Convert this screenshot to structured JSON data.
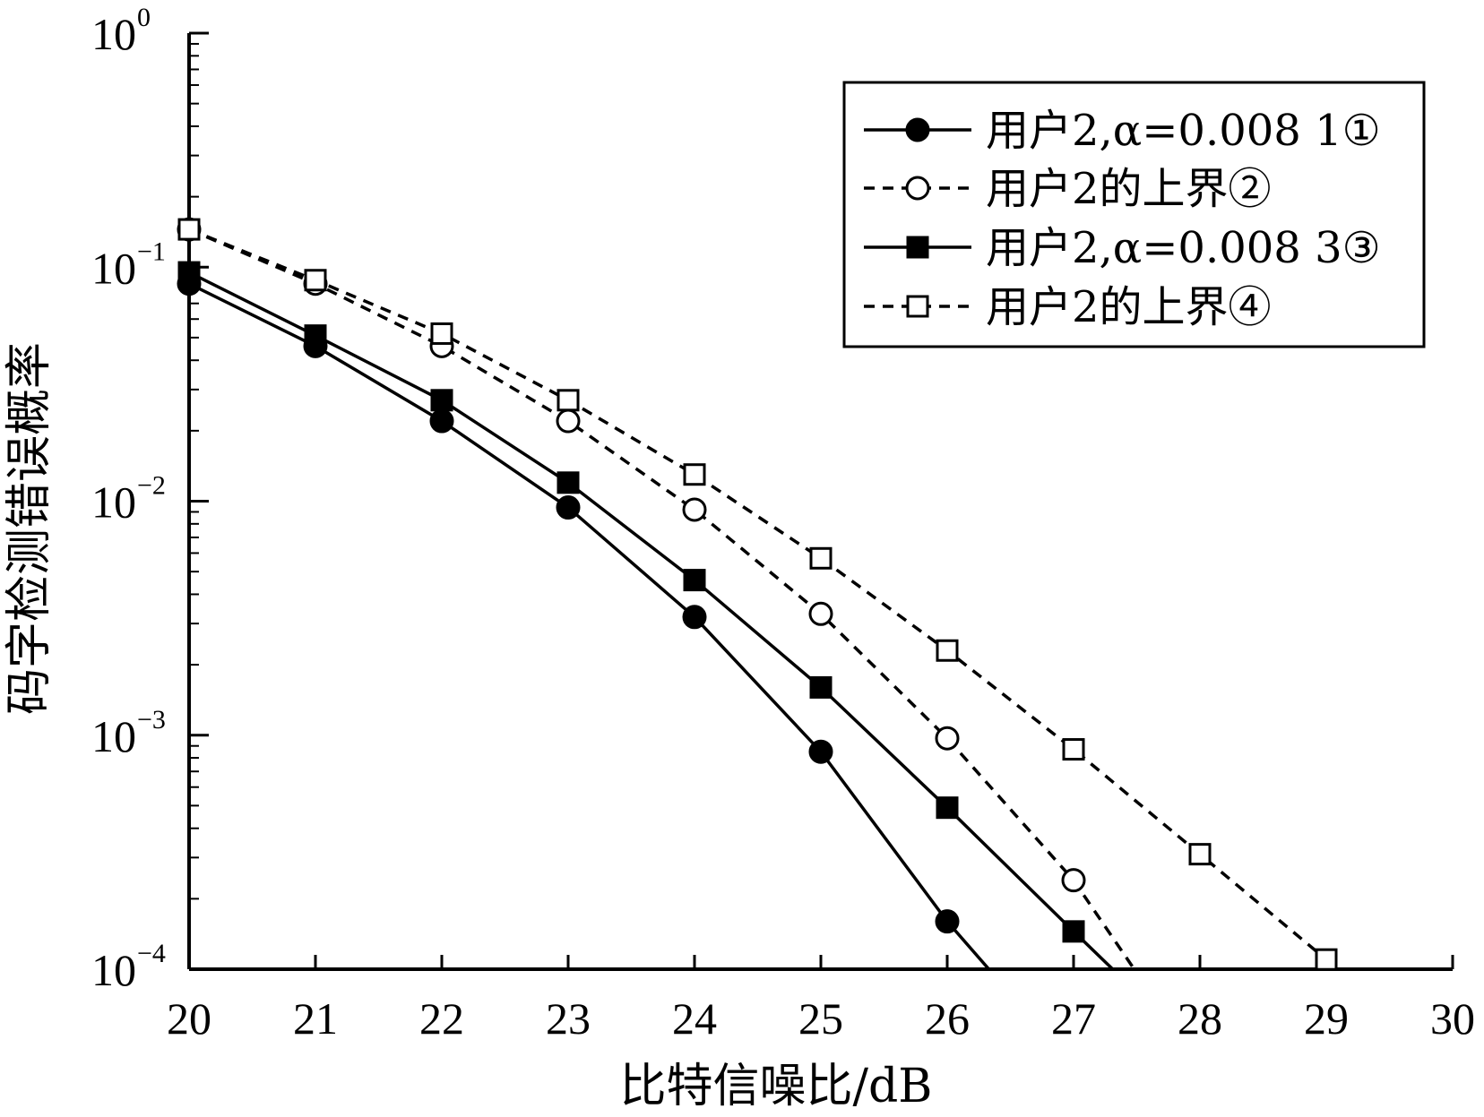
{
  "chart_data": {
    "type": "line",
    "title": "",
    "xlabel": "比特信噪比/dB",
    "ylabel": "码字检测错误概率",
    "xlim": [
      20,
      30
    ],
    "ylim": [
      0.0001,
      1
    ],
    "yscale": "log",
    "grid": false,
    "legend_position": "top-right",
    "x_ticks": [
      "20",
      "21",
      "22",
      "23",
      "24",
      "25",
      "26",
      "27",
      "28",
      "29",
      "30"
    ],
    "y_ticks": [
      {
        "base": "10",
        "exp": "0",
        "value": 1
      },
      {
        "base": "10",
        "exp": "−1",
        "value": 0.1
      },
      {
        "base": "10",
        "exp": "−2",
        "value": 0.01
      },
      {
        "base": "10",
        "exp": "−3",
        "value": 0.001
      },
      {
        "base": "10",
        "exp": "−4",
        "value": 0.0001
      }
    ],
    "series": [
      {
        "name": "用户2,α=0.008 1①",
        "line_style": "solid",
        "marker": "filled-circle",
        "color": "#000000",
        "x": [
          20,
          21,
          22,
          23,
          24,
          25,
          26,
          26.33
        ],
        "y": [
          0.085,
          0.046,
          0.022,
          0.0094,
          0.0032,
          0.00085,
          0.00016,
          0.0001
        ]
      },
      {
        "name": "用户2的上界②",
        "line_style": "dashed",
        "marker": "open-circle",
        "color": "#000000",
        "x": [
          20,
          21,
          22,
          23,
          24,
          25,
          26,
          27,
          27.48
        ],
        "y": [
          0.145,
          0.085,
          0.046,
          0.022,
          0.0092,
          0.0033,
          0.00097,
          0.00024,
          0.0001
        ]
      },
      {
        "name": "用户2,α=0.008 3③",
        "line_style": "solid",
        "marker": "filled-square",
        "color": "#000000",
        "x": [
          20,
          21,
          22,
          23,
          24,
          25,
          26,
          27,
          27.31
        ],
        "y": [
          0.095,
          0.051,
          0.027,
          0.012,
          0.0046,
          0.0016,
          0.00049,
          0.000145,
          0.0001
        ]
      },
      {
        "name": "用户2的上界④",
        "line_style": "dashed",
        "marker": "open-square",
        "color": "#000000",
        "x": [
          20,
          21,
          22,
          23,
          24,
          25,
          26,
          27,
          28,
          29
        ],
        "y": [
          0.145,
          0.088,
          0.052,
          0.027,
          0.013,
          0.0057,
          0.0023,
          0.00087,
          0.00031,
          0.00011
        ]
      }
    ]
  }
}
